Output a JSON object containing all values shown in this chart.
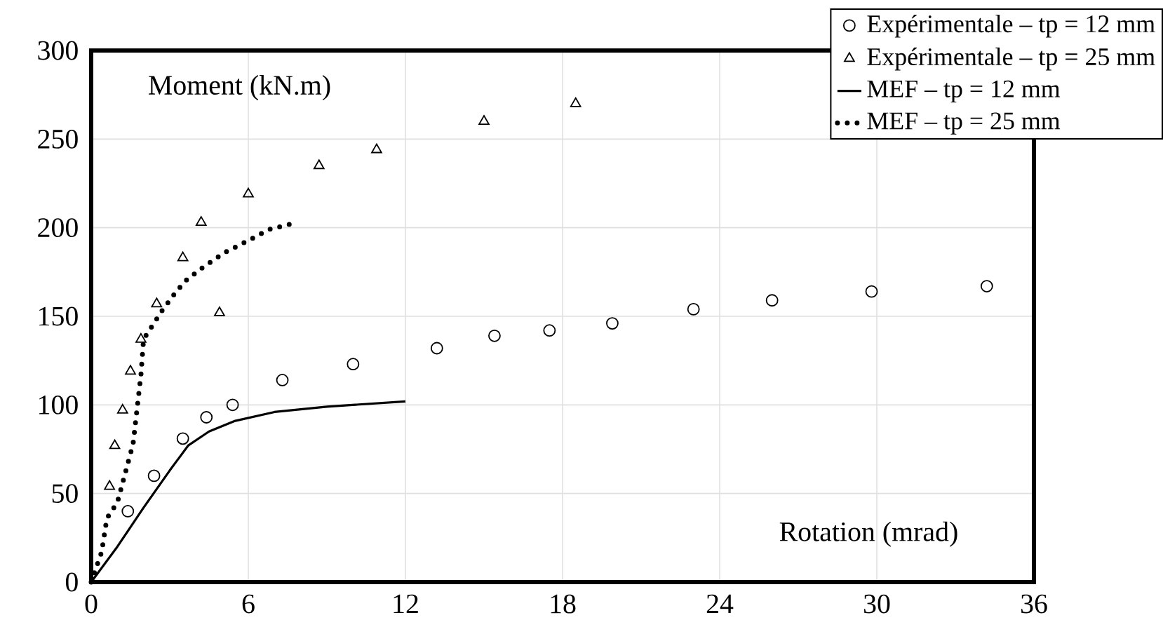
{
  "chart_data": {
    "type": "scatter",
    "xlabel": "Rotation (mrad)",
    "ylabel": "Moment (kN.m)",
    "xlim": [
      0,
      36
    ],
    "xticks": [
      0,
      6,
      12,
      18,
      24,
      30,
      36
    ],
    "ylim": [
      0,
      300
    ],
    "yticks": [
      0,
      50,
      100,
      150,
      200,
      250,
      300
    ],
    "grid": true,
    "legend": "top right",
    "series": [
      {
        "name": "Expérimentale – tp = 12 mm",
        "marker": "circle",
        "color": "#000000",
        "x": [
          1.4,
          2.4,
          3.5,
          4.4,
          5.4,
          7.3,
          10.0,
          13.2,
          15.4,
          17.5,
          19.9,
          23.0,
          26.0,
          29.8,
          34.2
        ],
        "values": [
          40,
          60,
          81,
          93,
          100,
          114,
          123,
          132,
          139,
          142,
          146,
          154,
          159,
          164,
          167
        ]
      },
      {
        "name": "Expérimentale – tp = 25 mm",
        "marker": "triangle",
        "color": "#000000",
        "x": [
          0.7,
          0.9,
          1.2,
          1.5,
          1.9,
          2.5,
          3.5,
          4.2,
          4.9,
          6.0,
          8.7,
          10.9,
          15.0,
          18.5
        ],
        "values": [
          54,
          77,
          97,
          119,
          137,
          157,
          183,
          203,
          152,
          219,
          235,
          244,
          260,
          270
        ]
      },
      {
        "name": "MEF – tp = 12 mm",
        "type": "line",
        "line_style": "solid",
        "color": "#000000",
        "x": [
          0,
          1,
          2,
          3,
          3.7,
          4.5,
          5.5,
          7,
          9,
          12
        ],
        "values": [
          0,
          20,
          42,
          63,
          77,
          85,
          91,
          96,
          99,
          102
        ]
      },
      {
        "name": "MEF – tp = 25 mm",
        "type": "line",
        "line_style": "dotted",
        "color": "#000000",
        "x": [
          0,
          0.4,
          0.6,
          1.0,
          1.6,
          1.9,
          2.0,
          2.7,
          3.2,
          3.6,
          4.3,
          5.1,
          5.9,
          6.8,
          7.6
        ],
        "values": [
          0,
          17,
          36,
          45,
          78,
          117,
          137,
          153,
          163,
          170,
          178,
          186,
          192,
          199,
          202
        ]
      }
    ]
  }
}
